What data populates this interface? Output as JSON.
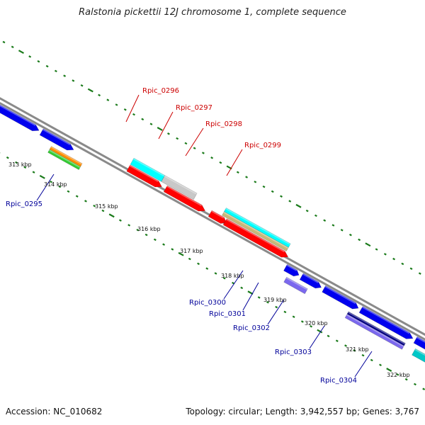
{
  "title": "Ralstonia pickettii 12J chromosome 1, complete sequence",
  "footer": {
    "accession": "Accession: NC_010682",
    "summary": "Topology: circular; Length: 3,942,557 bp; Genes: 3,767"
  },
  "colors": {
    "backbone": "#8a8a8a",
    "tick": "#1a7a1a",
    "label_forward": "#cc0000",
    "label_reverse": "#000099"
  },
  "scale_ticks": [
    "313 kbp",
    "314 kbp",
    "315 kbp",
    "316 kbp",
    "317 kbp",
    "318 kbp",
    "319 kbp",
    "320 kbp",
    "321 kbp",
    "322 kbp"
  ],
  "gene_labels": [
    {
      "name": "Rpic_0295",
      "color": "#000099"
    },
    {
      "name": "Rpic_0296",
      "color": "#cc0000"
    },
    {
      "name": "Rpic_0297",
      "color": "#cc0000"
    },
    {
      "name": "Rpic_0298",
      "color": "#cc0000"
    },
    {
      "name": "Rpic_0299",
      "color": "#cc0000"
    },
    {
      "name": "Rpic_0300",
      "color": "#000099"
    },
    {
      "name": "Rpic_0301",
      "color": "#000099"
    },
    {
      "name": "Rpic_0302",
      "color": "#000099"
    },
    {
      "name": "Rpic_0303",
      "color": "#000099"
    },
    {
      "name": "Rpic_0304",
      "color": "#000099"
    }
  ],
  "features": [
    {
      "name": "cds-upstream-1",
      "color": "#0000ee"
    },
    {
      "name": "cds-upstream-2",
      "color": "#0000ee"
    },
    {
      "name": "rpic-0295-orange",
      "color": "#ff8c00"
    },
    {
      "name": "rpic-0295-green",
      "color": "#33cc33"
    },
    {
      "name": "rpic-0296-cyan",
      "color": "#00ffff"
    },
    {
      "name": "rpic-0297-gray",
      "color": "#c8c8c8"
    },
    {
      "name": "rpic-0296-red",
      "color": "#ff0000"
    },
    {
      "name": "rpic-0297-red",
      "color": "#ff0000"
    },
    {
      "name": "rpic-0298-red",
      "color": "#ff0000"
    },
    {
      "name": "rpic-0299-cyan",
      "color": "#00ffff"
    },
    {
      "name": "rpic-0299-khaki",
      "color": "#c8b878"
    },
    {
      "name": "rpic-0299-red",
      "color": "#ff0000"
    },
    {
      "name": "cds-small-blue",
      "color": "#0000ee"
    },
    {
      "name": "cds-blue-a",
      "color": "#0000ee"
    },
    {
      "name": "cds-blue-b",
      "color": "#0000ee"
    },
    {
      "name": "cds-blue-c",
      "color": "#0000ee"
    },
    {
      "name": "rpic-0300-lavender",
      "color": "#7b68ee"
    },
    {
      "name": "rpic-0302-navy",
      "color": "#000080"
    },
    {
      "name": "rpic-0302-lavender",
      "color": "#7b68ee"
    },
    {
      "name": "cds-blue-d",
      "color": "#0000ee"
    },
    {
      "name": "rpic-0304-cyan",
      "color": "#00c8c8"
    },
    {
      "name": "cds-blue-e",
      "color": "#0000ee"
    },
    {
      "name": "rpic-0304-gray",
      "color": "#c8c8c8"
    }
  ]
}
